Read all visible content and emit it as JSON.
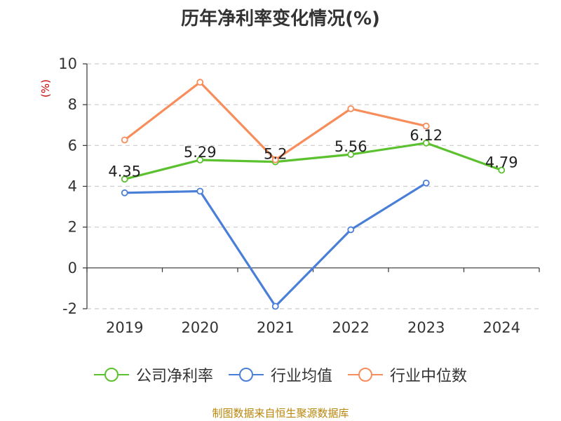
{
  "chart_data": {
    "type": "line",
    "title": "历年净利率变化情况(%)",
    "ylabel": "(%)",
    "categories": [
      "2019",
      "2020",
      "2021",
      "2022",
      "2023",
      "2024"
    ],
    "ylim": [
      -2,
      10
    ],
    "yticks": [
      -2,
      0,
      2,
      4,
      6,
      8,
      10
    ],
    "grid": true,
    "legend_position": "bottom",
    "series": [
      {
        "name": "公司净利率",
        "color": "#5cc12f",
        "values": [
          4.35,
          5.29,
          5.2,
          5.56,
          6.12,
          4.79
        ],
        "data_labels": [
          "4.35",
          "5.29",
          "5.2",
          "5.56",
          "6.12",
          "4.79"
        ]
      },
      {
        "name": "行业均值",
        "color": "#4a7fd8",
        "values": [
          3.68,
          3.76,
          -1.88,
          1.87,
          4.16,
          null
        ],
        "data_labels": null
      },
      {
        "name": "行业中位数",
        "color": "#f78d5b",
        "values": [
          6.27,
          9.1,
          5.3,
          7.8,
          6.95,
          null
        ],
        "data_labels": null
      }
    ]
  },
  "source_note": "制图数据来自恒生聚源数据库"
}
